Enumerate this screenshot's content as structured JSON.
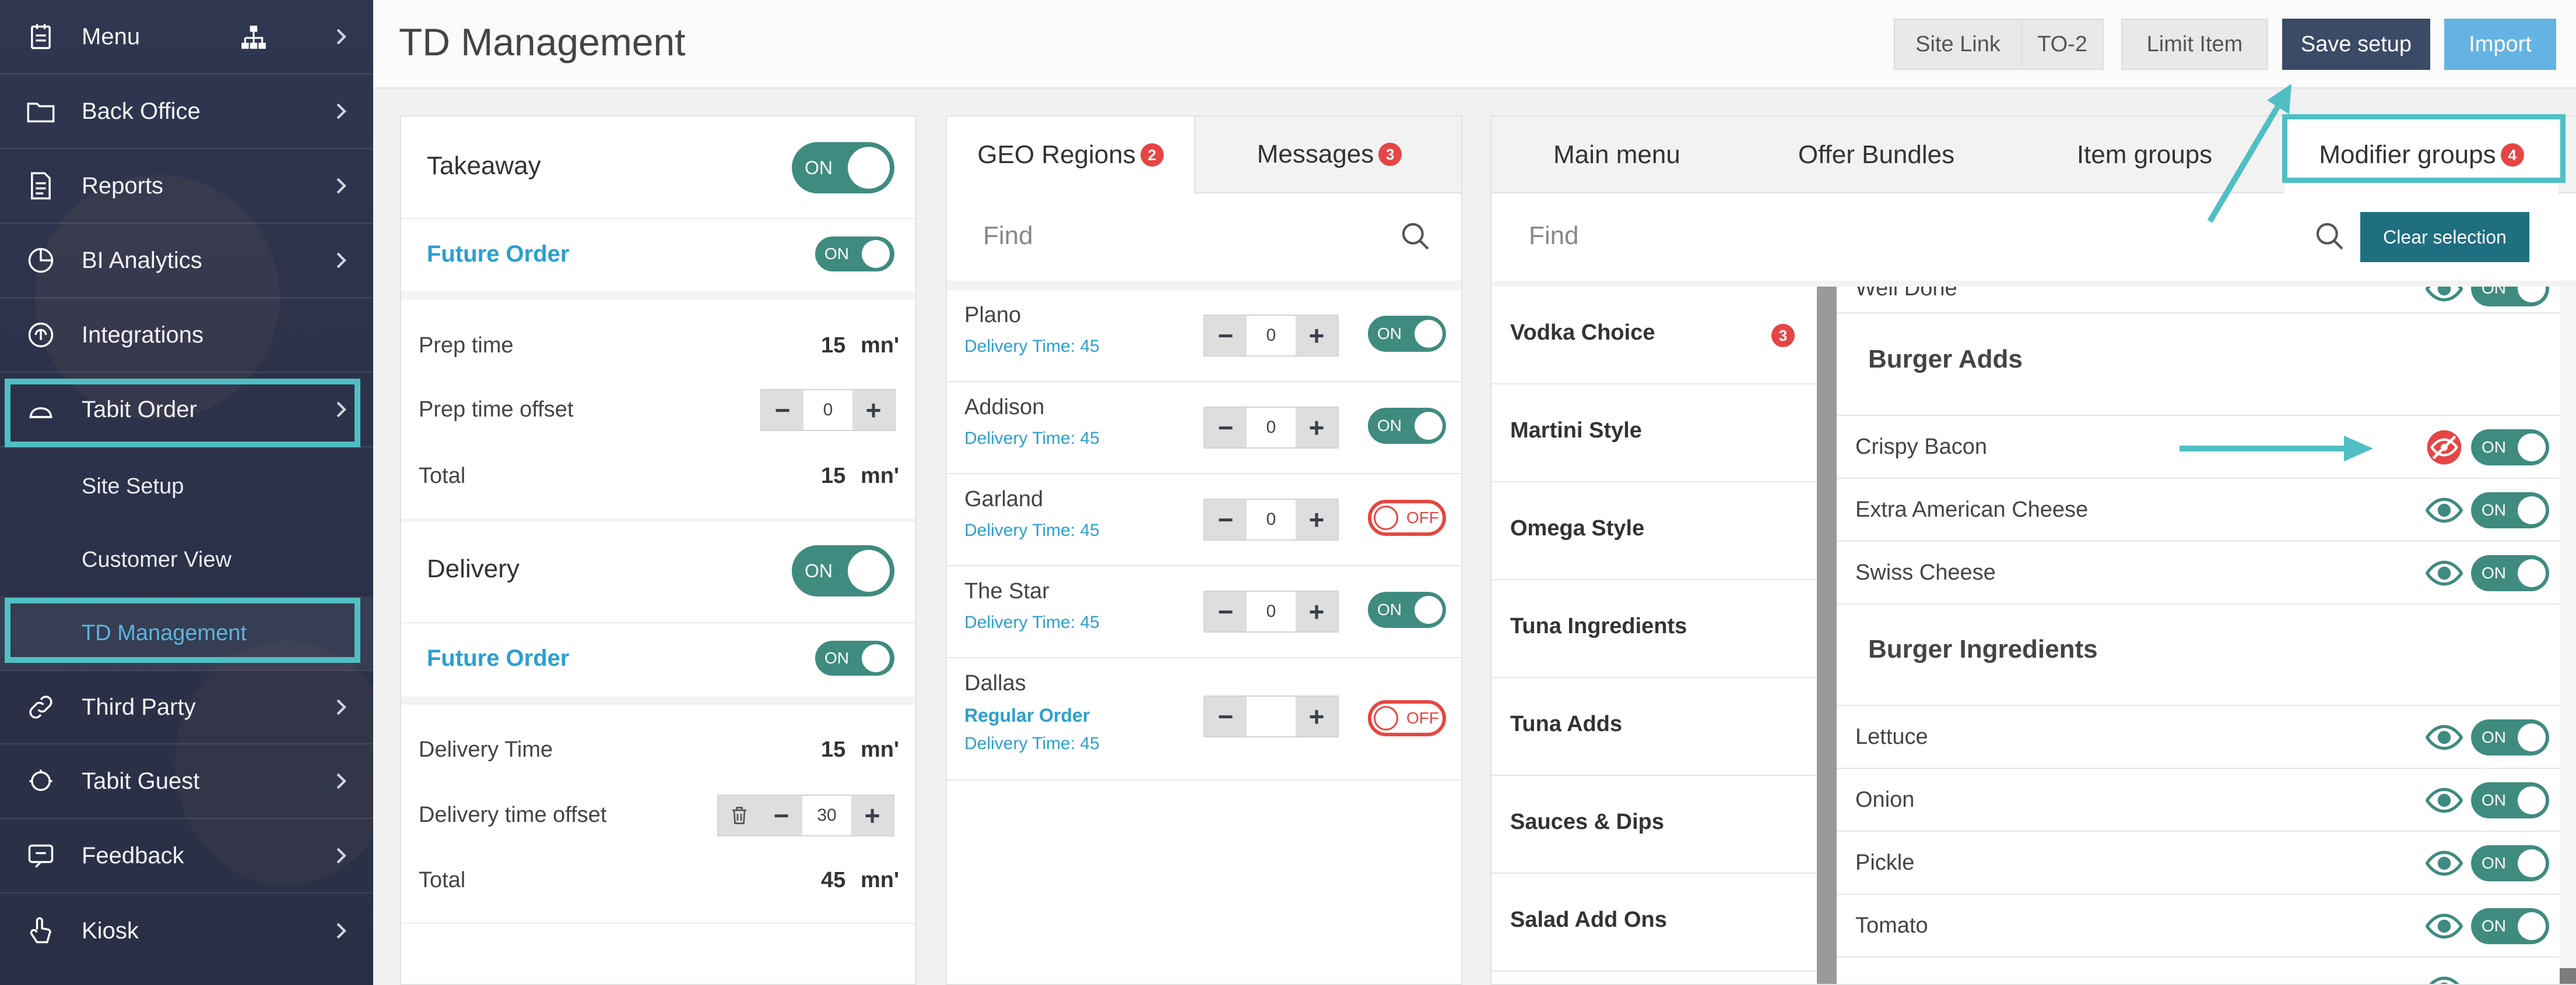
{
  "sidebar": {
    "items": [
      {
        "label": "Menu",
        "icon": "menu-book-icon"
      },
      {
        "label": "Back Office",
        "icon": "folder-icon"
      },
      {
        "label": "Reports",
        "icon": "report-icon"
      },
      {
        "label": "BI Analytics",
        "icon": "analytics-icon"
      },
      {
        "label": "Integrations",
        "icon": "integrations-icon"
      },
      {
        "label": "Tabit Order",
        "icon": "cloud-icon"
      },
      {
        "label": "Third Party",
        "icon": "link-icon"
      },
      {
        "label": "Tabit Guest",
        "icon": "guest-icon"
      },
      {
        "label": "Feedback",
        "icon": "feedback-icon"
      },
      {
        "label": "Kiosk",
        "icon": "hand-pointer-icon"
      }
    ],
    "sub_items": [
      {
        "label": "Site Setup"
      },
      {
        "label": "Customer View"
      },
      {
        "label": "TD Management"
      }
    ]
  },
  "header": {
    "title": "TD Management",
    "buttons": {
      "site_link": "Site Link",
      "to2": "TO-2",
      "limit_item": "Limit Item",
      "save_setup": "Save setup",
      "import": "Import"
    }
  },
  "settings": {
    "takeaway": {
      "label": "Takeaway",
      "toggle": "ON"
    },
    "takeaway_future": {
      "label": "Future Order",
      "toggle": "ON"
    },
    "prep_time": {
      "label": "Prep time",
      "value": "15",
      "unit": "mn'"
    },
    "prep_offset": {
      "label": "Prep time offset",
      "value": "0"
    },
    "prep_total": {
      "label": "Total",
      "value": "15",
      "unit": "mn'"
    },
    "delivery": {
      "label": "Delivery",
      "toggle": "ON"
    },
    "delivery_future": {
      "label": "Future Order",
      "toggle": "ON"
    },
    "delivery_time": {
      "label": "Delivery Time",
      "value": "15",
      "unit": "mn'"
    },
    "delivery_offset": {
      "label": "Delivery time offset",
      "value": "30"
    },
    "delivery_total": {
      "label": "Total",
      "value": "45",
      "unit": "mn'"
    }
  },
  "geo": {
    "tabs": [
      {
        "label": "GEO Regions",
        "badge": "2"
      },
      {
        "label": "Messages",
        "badge": "3"
      }
    ],
    "find_placeholder": "Find",
    "regions": [
      {
        "name": "Plano",
        "sub": "",
        "delivery": "Delivery Time: 45",
        "value": "0",
        "toggle": "ON"
      },
      {
        "name": "Addison",
        "sub": "",
        "delivery": "Delivery Time: 45",
        "value": "0",
        "toggle": "ON"
      },
      {
        "name": "Garland",
        "sub": "",
        "delivery": "Delivery Time: 45",
        "value": "0",
        "toggle": "OFF"
      },
      {
        "name": "The Star",
        "sub": "",
        "delivery": "Delivery Time: 45",
        "value": "0",
        "toggle": "ON"
      },
      {
        "name": "Dallas",
        "sub": "Regular Order",
        "delivery": "Delivery Time: 45",
        "value": "",
        "toggle": "OFF"
      }
    ]
  },
  "menu": {
    "tabs": [
      {
        "label": "Main menu",
        "badge": ""
      },
      {
        "label": "Offer Bundles",
        "badge": ""
      },
      {
        "label": "Item groups",
        "badge": ""
      },
      {
        "label": "Modifier groups",
        "badge": "4"
      }
    ],
    "find_placeholder": "Find",
    "clear_label": "Clear selection",
    "categories": [
      {
        "label": "Vodka Choice",
        "badge": "3"
      },
      {
        "label": "Martini Style",
        "badge": ""
      },
      {
        "label": "Omega Style",
        "badge": ""
      },
      {
        "label": "Tuna Ingredients",
        "badge": ""
      },
      {
        "label": "Tuna Adds",
        "badge": ""
      },
      {
        "label": "Sauces & Dips",
        "badge": ""
      },
      {
        "label": "Salad Add Ons",
        "badge": ""
      }
    ],
    "partial_top": "Well Done",
    "groups": [
      {
        "title": "Burger Adds",
        "items": [
          {
            "name": "Crispy Bacon",
            "visible": false,
            "toggle": "ON"
          },
          {
            "name": "Extra American Cheese",
            "visible": true,
            "toggle": "ON"
          },
          {
            "name": "Swiss Cheese",
            "visible": true,
            "toggle": "ON"
          }
        ]
      },
      {
        "title": "Burger Ingredients",
        "items": [
          {
            "name": "Lettuce",
            "visible": true,
            "toggle": "ON"
          },
          {
            "name": "Onion",
            "visible": true,
            "toggle": "ON"
          },
          {
            "name": "Pickle",
            "visible": true,
            "toggle": "ON"
          },
          {
            "name": "Tomato",
            "visible": true,
            "toggle": "ON"
          }
        ]
      }
    ]
  },
  "colors": {
    "accent_teal": "#3f8b7f",
    "highlight": "#4fbfc4",
    "off_red": "#e6473f",
    "link_blue": "#2a9fd0"
  }
}
